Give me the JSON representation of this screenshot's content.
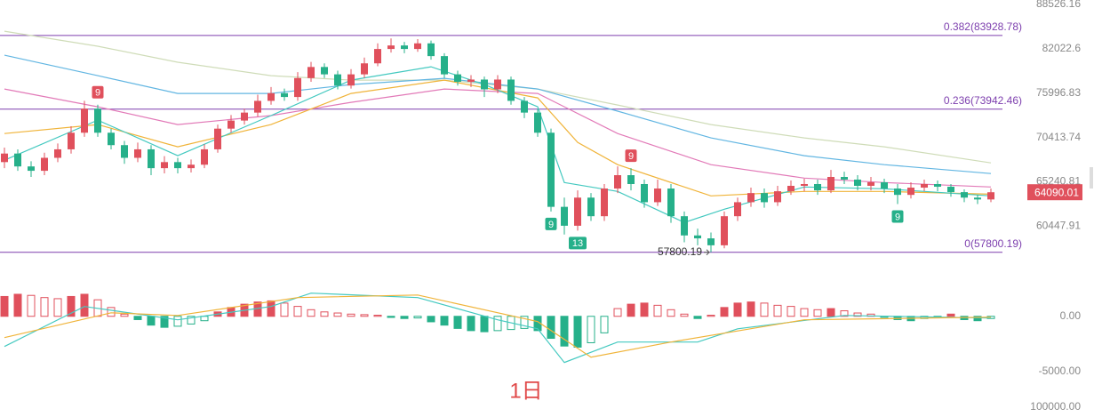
{
  "chart_data": {
    "type": "candlestick",
    "log": true,
    "ylim": [
      57250,
      89210
    ],
    "yticks": [
      60447.91,
      65240.81,
      70413.74,
      75996.83,
      82022.6,
      88526.16
    ],
    "up_color": "#e0505c",
    "down_color": "#26b08a",
    "open": [
      67500,
      68500,
      67000,
      66500,
      68000,
      69000,
      71000,
      74000,
      71000,
      69500,
      68000,
      69000,
      66800,
      67500,
      66800,
      67200,
      69000,
      71500,
      72500,
      73500,
      75000,
      76000,
      75500,
      78000,
      79500,
      78500,
      77000,
      78500,
      80000,
      82000,
      82500,
      82000,
      82800,
      81000,
      78500,
      77500,
      77800,
      76500,
      77800,
      75000,
      73500,
      71000,
      62500,
      60500,
      63500,
      61500,
      64500,
      66000,
      65000,
      63000,
      64500,
      61500,
      59500,
      59200,
      58500,
      61500,
      63000,
      64000,
      63000,
      64200,
      64800,
      65000,
      64300,
      65800,
      65500,
      64800,
      65200,
      64500,
      63800,
      64600,
      65000,
      64700,
      64100,
      63500,
      63300
    ],
    "high": [
      69200,
      69000,
      67600,
      68600,
      69700,
      71800,
      75000,
      74500,
      71500,
      70000,
      69800,
      69500,
      68200,
      68000,
      67800,
      69600,
      72000,
      73200,
      74000,
      75800,
      76800,
      76600,
      78800,
      80200,
      80000,
      79000,
      79200,
      80800,
      82800,
      83500,
      83000,
      83400,
      83200,
      81400,
      79000,
      78400,
      78200,
      78400,
      78200,
      75500,
      74000,
      71500,
      63500,
      64300,
      64000,
      65000,
      67000,
      66800,
      65500,
      65500,
      65000,
      62000,
      60200,
      59800,
      62000,
      63500,
      64600,
      64500,
      64800,
      65400,
      65600,
      65500,
      66600,
      66400,
      66000,
      65800,
      65600,
      65000,
      65200,
      65500,
      65400,
      65000,
      64400,
      63800,
      64500
    ],
    "low": [
      66800,
      66500,
      65800,
      66000,
      67500,
      68500,
      70500,
      70500,
      69000,
      67300,
      67500,
      66000,
      66200,
      66200,
      66300,
      66800,
      68600,
      71000,
      72000,
      73000,
      74500,
      75000,
      75000,
      77500,
      78000,
      76500,
      76600,
      78000,
      79600,
      81500,
      81400,
      81600,
      80500,
      78000,
      77000,
      76800,
      75500,
      76000,
      74500,
      72800,
      70500,
      62000,
      59600,
      60000,
      61000,
      61000,
      64000,
      64300,
      62400,
      62600,
      60800,
      58800,
      58500,
      57800.19,
      58200,
      61000,
      62500,
      62400,
      62600,
      63800,
      64200,
      63800,
      64000,
      65000,
      64300,
      64300,
      64000,
      62800,
      63400,
      64200,
      64200,
      63600,
      63000,
      62800,
      63000
    ],
    "close": [
      68500,
      67000,
      66500,
      68000,
      69000,
      71000,
      74000,
      71000,
      69500,
      68000,
      69000,
      66800,
      67500,
      66800,
      67200,
      69000,
      71500,
      72500,
      73500,
      75000,
      76000,
      75500,
      78000,
      79500,
      78500,
      77000,
      78500,
      80000,
      82000,
      82500,
      82000,
      82800,
      81000,
      78500,
      77500,
      77800,
      76500,
      77800,
      75000,
      73500,
      71000,
      62500,
      60500,
      63500,
      61500,
      64500,
      66000,
      65000,
      63000,
      64500,
      61500,
      59500,
      59200,
      58500,
      61500,
      63000,
      64000,
      63000,
      64200,
      64800,
      65000,
      64300,
      65800,
      65500,
      64800,
      65200,
      64500,
      63800,
      64600,
      65000,
      64700,
      64100,
      63500,
      63300,
      64090.01
    ],
    "ma": [
      {
        "color": "#cfdcb8",
        "x": [
          0,
          7,
          13,
          20,
          26,
          33,
          40,
          46,
          53,
          60,
          66,
          74
        ],
        "values": [
          84550,
          82390,
          80150,
          78320,
          77720,
          77720,
          76540,
          74470,
          72000,
          70370,
          69300,
          67410
        ]
      },
      {
        "color": "#62b6e2",
        "x": [
          0,
          7,
          13,
          20,
          26,
          33,
          40,
          46,
          53,
          60,
          66,
          74
        ],
        "values": [
          81130,
          78320,
          75960,
          75960,
          77130,
          77960,
          76540,
          73680,
          70370,
          68250,
          67200,
          66180
        ]
      },
      {
        "color": "#e27ab8",
        "x": [
          0,
          7,
          13,
          20,
          26,
          33,
          40,
          46,
          53,
          60,
          66,
          74
        ],
        "values": [
          76540,
          74240,
          72000,
          73120,
          74810,
          76540,
          75960,
          70900,
          67200,
          65670,
          65170,
          64670
        ]
      },
      {
        "color": "#f0b43a",
        "x": [
          0,
          7,
          13,
          20,
          26,
          33,
          40,
          43,
          46,
          53,
          60,
          66,
          74
        ],
        "values": [
          70900,
          72000,
          69300,
          72000,
          75960,
          77720,
          75380,
          69830,
          67200,
          63690,
          64180,
          64180,
          63880
        ]
      },
      {
        "color": "#44c9c0",
        "x": [
          0,
          7,
          13,
          20,
          26,
          32,
          36,
          40,
          42,
          46,
          51,
          54,
          60,
          66,
          74
        ],
        "values": [
          67720,
          72560,
          68250,
          73120,
          77720,
          79530,
          77130,
          74240,
          65170,
          64180,
          60840,
          62250,
          64670,
          64470,
          63690
        ]
      }
    ],
    "fib_lines": [
      {
        "label": "0.382(83928.78)",
        "value": 83928.78
      },
      {
        "label": "0.236(73942.46)",
        "value": 73942.46
      },
      {
        "label": "0(57800.19)",
        "value": 57800.19
      }
    ],
    "fib_color": "#7d3fae",
    "signals": [
      {
        "label": "9",
        "candle": 7,
        "side": "above",
        "color": "#e0505c"
      },
      {
        "label": "9",
        "candle": 47,
        "side": "above",
        "color": "#e0505c"
      },
      {
        "label": "9",
        "candle": 41,
        "side": "below",
        "color": "#26b08a"
      },
      {
        "label": "13",
        "candle": 43,
        "side": "below",
        "color": "#26b08a"
      },
      {
        "label": "9",
        "candle": 67,
        "side": "below",
        "color": "#26b08a"
      }
    ],
    "low_marker": 53,
    "macd": {
      "ylim": [
        -6800,
        4500
      ],
      "yticks": [
        {
          "value": 0,
          "label": "0.00"
        },
        {
          "value": -5000,
          "label": "-5000.00"
        }
      ],
      "histogram": [
        1800,
        2000,
        1900,
        1700,
        1600,
        1800,
        2000,
        1500,
        800,
        200,
        -300,
        -800,
        -1000,
        -900,
        -700,
        -400,
        400,
        800,
        1100,
        1300,
        1400,
        1200,
        900,
        600,
        400,
        300,
        200,
        150,
        100,
        -100,
        -200,
        -150,
        -500,
        -800,
        -1100,
        -1300,
        -1400,
        -1300,
        -1200,
        -1100,
        -1300,
        -2000,
        -2700,
        -2800,
        -2400,
        -1500,
        700,
        1100,
        1200,
        1000,
        600,
        200,
        -200,
        100,
        800,
        1200,
        1300,
        1200,
        1000,
        900,
        700,
        600,
        700,
        500,
        300,
        200,
        -100,
        -300,
        -400,
        -200,
        -100,
        200,
        -300,
        -400,
        -200
      ],
      "lines": [
        {
          "color": "#44c9c0",
          "x": [
            0,
            6,
            13,
            20,
            23,
            31,
            37,
            40,
            42,
            46,
            52,
            55,
            63,
            74
          ],
          "values": [
            -2740,
            890,
            -320,
            890,
            2100,
            1700,
            -320,
            -1130,
            -4190,
            -2340,
            -2340,
            -1130,
            80,
            -160
          ]
        },
        {
          "color": "#f0b43a",
          "x": [
            0,
            8,
            13,
            22,
            31,
            40,
            44,
            50,
            60,
            74
          ],
          "values": [
            -1935,
            320,
            80,
            1700,
            1935,
            -480,
            -3710,
            -2340,
            -320,
            -80
          ]
        }
      ]
    },
    "bottom_label": "100000.00",
    "period_label": "1日"
  }
}
